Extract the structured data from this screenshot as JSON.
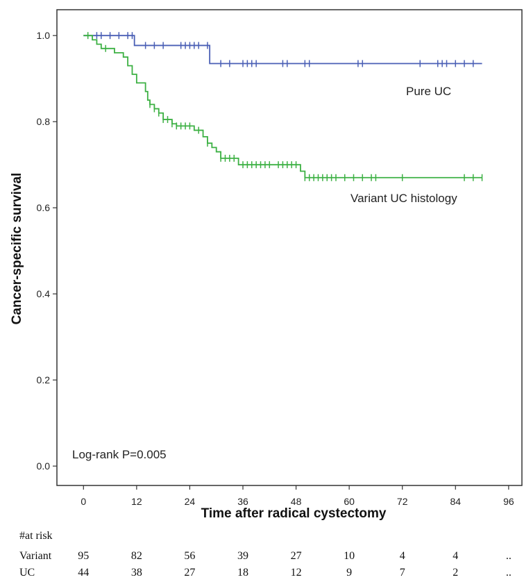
{
  "chart_data": {
    "type": "line",
    "step": true,
    "xlabel": "Time after radical cystectomy",
    "ylabel": "Cancer-specific survival",
    "xlim": [
      -6,
      99
    ],
    "ylim": [
      -0.045,
      1.06
    ],
    "x_ticks": [
      0,
      12,
      24,
      36,
      48,
      60,
      72,
      84,
      96
    ],
    "y_ticks": [
      0.0,
      0.2,
      0.4,
      0.6,
      0.8,
      1.0
    ],
    "y_tick_labels": [
      "0.0",
      "0.2",
      "0.4",
      "0.6",
      "0.8",
      "1.0"
    ],
    "grid": false,
    "annotation": "Log-rank P=0.005",
    "series": [
      {
        "name": "Pure UC",
        "color": "#4a5fb5",
        "steps": [
          [
            0,
            1.0
          ],
          [
            11.5,
            0.977
          ],
          [
            28.5,
            0.935
          ],
          [
            90,
            0.935
          ]
        ],
        "censored": [
          3,
          4,
          6,
          8,
          10,
          11,
          14,
          16,
          18,
          22,
          23,
          24,
          25,
          26,
          28,
          31,
          33,
          36,
          37,
          38,
          39,
          45,
          46,
          50,
          51,
          62,
          63,
          76,
          80,
          81,
          82,
          84,
          86,
          88
        ]
      },
      {
        "name": "Variant UC histology",
        "color": "#3cb043",
        "steps": [
          [
            0,
            1.0
          ],
          [
            2,
            0.99
          ],
          [
            3,
            0.98
          ],
          [
            4,
            0.97
          ],
          [
            7,
            0.96
          ],
          [
            9,
            0.95
          ],
          [
            10,
            0.93
          ],
          [
            11,
            0.91
          ],
          [
            12,
            0.89
          ],
          [
            14,
            0.87
          ],
          [
            14.5,
            0.85
          ],
          [
            15,
            0.84
          ],
          [
            16,
            0.83
          ],
          [
            17,
            0.82
          ],
          [
            18,
            0.805
          ],
          [
            20,
            0.795
          ],
          [
            21,
            0.79
          ],
          [
            25,
            0.78
          ],
          [
            27,
            0.765
          ],
          [
            28,
            0.75
          ],
          [
            29,
            0.74
          ],
          [
            30,
            0.73
          ],
          [
            31,
            0.715
          ],
          [
            35,
            0.7
          ],
          [
            49,
            0.685
          ],
          [
            50,
            0.67
          ],
          [
            90,
            0.67
          ]
        ],
        "censored": [
          1,
          5,
          15,
          16,
          17,
          18,
          19,
          20,
          21,
          22,
          23,
          24,
          26,
          28,
          31,
          32,
          33,
          34,
          36,
          37,
          38,
          39,
          40,
          41,
          42,
          44,
          45,
          46,
          47,
          48,
          50,
          51,
          52,
          53,
          54,
          55,
          56,
          57,
          59,
          61,
          63,
          65,
          66,
          72,
          86,
          88,
          90
        ]
      }
    ],
    "risk_table": {
      "header": "#at risk",
      "columns_x": [
        0,
        12,
        24,
        36,
        48,
        60,
        72,
        84,
        96
      ],
      "rows": [
        {
          "label": "Variant",
          "values": [
            "95",
            "82",
            "56",
            "39",
            "27",
            "10",
            "4",
            "4",
            ".."
          ]
        },
        {
          "label": "UC",
          "values": [
            "44",
            "38",
            "27",
            "18",
            "12",
            "9",
            "7",
            "2",
            ".."
          ]
        }
      ]
    }
  }
}
